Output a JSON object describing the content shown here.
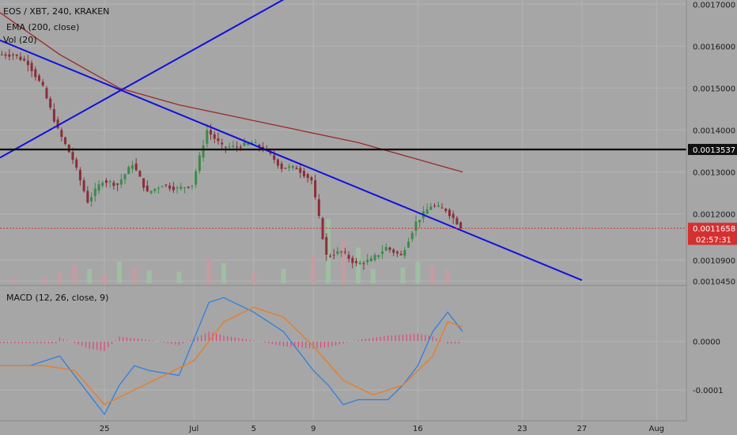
{
  "header": {
    "symbol": "EOS / XBT, 240, KRAKEN",
    "indicator_ema": "EMA (200, close)",
    "indicator_vol": "Vol (20)",
    "indicator_macd": "MACD (12, 26, close, 9)"
  },
  "colors": {
    "background": "#a6a6a6",
    "grid": "#b4b4b4",
    "up_candle": "#3c8a4a",
    "down_candle": "#8b2d3a",
    "ema": "#9a2a2a",
    "trendline": "#1010e0",
    "hline": "#000000",
    "price_line": "#d43030",
    "macd_line": "#2f7fe0",
    "signal_line": "#ee7a1e",
    "histogram": "#e0467a"
  },
  "chart_data": {
    "type": "candlestick",
    "title": "EOS / XBT, 240, KRAKEN",
    "price_axis": {
      "range": [
        0.001035,
        0.00171
      ],
      "ticks": [
        0.0017,
        0.0016,
        0.0015,
        0.0014,
        0.0013,
        0.0012,
        0.00109,
        0.00104
      ]
    },
    "price_tick_labels": [
      "0.0017000",
      "0.0016000",
      "0.0015000",
      "0.0014000",
      "0.0013000",
      "0.0012000",
      "0.0010900",
      "0.0010450"
    ],
    "x_axis": {
      "range": [
        -7,
        39
      ],
      "tick_labels": [
        {
          "x": 0,
          "label": "25"
        },
        {
          "x": 6,
          "label": "Jul"
        },
        {
          "x": 10,
          "label": "5"
        },
        {
          "x": 14,
          "label": "9"
        },
        {
          "x": 21,
          "label": "16"
        },
        {
          "x": 28,
          "label": "23"
        },
        {
          "x": 32,
          "label": "27"
        },
        {
          "x": 37,
          "label": "Aug"
        }
      ]
    },
    "price_path": [
      [
        -7,
        0.00158
      ],
      [
        -6,
        0.00158
      ],
      [
        -5,
        0.00156
      ],
      [
        -4,
        0.0015
      ],
      [
        -3,
        0.0014
      ],
      [
        -2,
        0.00133
      ],
      [
        -1,
        0.00123
      ],
      [
        0,
        0.00128
      ],
      [
        1,
        0.00127
      ],
      [
        2,
        0.00132
      ],
      [
        3,
        0.00125
      ],
      [
        4,
        0.00127
      ],
      [
        5,
        0.00126
      ],
      [
        6,
        0.00127
      ],
      [
        7,
        0.0014
      ],
      [
        8,
        0.00136
      ],
      [
        9,
        0.00136
      ],
      [
        10,
        0.00137
      ],
      [
        11,
        0.00135
      ],
      [
        12,
        0.00131
      ],
      [
        13,
        0.00131
      ],
      [
        14,
        0.00128
      ],
      [
        15,
        0.0011
      ],
      [
        16,
        0.00111
      ],
      [
        17,
        0.00108
      ],
      [
        18,
        0.00109
      ],
      [
        19,
        0.00112
      ],
      [
        20,
        0.0011
      ],
      [
        21,
        0.00118
      ],
      [
        22,
        0.00122
      ],
      [
        23,
        0.00121
      ],
      [
        24,
        0.00117
      ]
    ],
    "ema200": [
      [
        -7,
        0.00168
      ],
      [
        -3,
        0.00158
      ],
      [
        1,
        0.0015
      ],
      [
        5,
        0.00146
      ],
      [
        9,
        0.00143
      ],
      [
        13,
        0.0014
      ],
      [
        17,
        0.00137
      ],
      [
        21,
        0.00133
      ],
      [
        24,
        0.0013
      ]
    ],
    "trendlines": [
      {
        "from": [
          -7,
          0.001334
        ],
        "to": [
          13,
          0.001731
        ]
      },
      {
        "from": [
          -7,
          0.001614
        ],
        "to": [
          32,
          0.001042
        ]
      }
    ],
    "horizontal_line": {
      "value": 0.0013537,
      "label": "0.0013537"
    },
    "last_price": {
      "value": 0.0011658,
      "label": "0.0011658",
      "countdown": "02:57:31"
    },
    "volume": [
      [
        -6,
        0.05
      ],
      [
        -4,
        0.08
      ],
      [
        -3,
        0.15
      ],
      [
        -2,
        0.25
      ],
      [
        -1,
        0.2
      ],
      [
        0,
        0.12
      ],
      [
        1,
        0.3
      ],
      [
        2,
        0.22
      ],
      [
        3,
        0.18
      ],
      [
        5,
        0.16
      ],
      [
        7,
        0.35
      ],
      [
        8,
        0.28
      ],
      [
        10,
        0.15
      ],
      [
        12,
        0.2
      ],
      [
        14,
        0.4
      ],
      [
        15,
        0.9
      ],
      [
        16,
        0.6
      ],
      [
        17,
        0.5
      ],
      [
        18,
        0.2
      ],
      [
        20,
        0.22
      ],
      [
        21,
        0.3
      ],
      [
        22,
        0.25
      ],
      [
        23,
        0.2
      ]
    ],
    "macd": {
      "axis": {
        "range": [
          -0.00016,
          0.00011
        ],
        "tick_labels": [
          {
            "value": 0,
            "label": "0.0000"
          },
          {
            "value": -0.0001,
            "label": "-0.0001"
          }
        ]
      },
      "macd_line": [
        [
          -7,
          -5e-05
        ],
        [
          -5,
          -5e-05
        ],
        [
          -3,
          -3e-05
        ],
        [
          -1,
          -0.00011
        ],
        [
          0,
          -0.00015
        ],
        [
          1,
          -9e-05
        ],
        [
          2,
          -5e-05
        ],
        [
          3,
          -6e-05
        ],
        [
          5,
          -7e-05
        ],
        [
          7,
          8e-05
        ],
        [
          8,
          9e-05
        ],
        [
          10,
          6e-05
        ],
        [
          12,
          2e-05
        ],
        [
          14,
          -6e-05
        ],
        [
          15,
          -9e-05
        ],
        [
          16,
          -0.00013
        ],
        [
          17,
          -0.00012
        ],
        [
          19,
          -0.00012
        ],
        [
          20,
          -9e-05
        ],
        [
          21,
          -5e-05
        ],
        [
          22,
          2e-05
        ],
        [
          23,
          6e-05
        ],
        [
          24,
          2e-05
        ]
      ],
      "signal_line": [
        [
          -7,
          -5e-05
        ],
        [
          -4,
          -5e-05
        ],
        [
          -2,
          -6e-05
        ],
        [
          0,
          -0.00013
        ],
        [
          2,
          -0.0001
        ],
        [
          4,
          -7e-05
        ],
        [
          6,
          -4e-05
        ],
        [
          8,
          4e-05
        ],
        [
          10,
          7e-05
        ],
        [
          12,
          5e-05
        ],
        [
          14,
          -1e-05
        ],
        [
          16,
          -8e-05
        ],
        [
          18,
          -0.00011
        ],
        [
          20,
          -9e-05
        ],
        [
          22,
          -3e-05
        ],
        [
          23,
          4e-05
        ],
        [
          24,
          3e-05
        ]
      ],
      "histogram": [
        [
          -3,
          8e-06
        ],
        [
          -1,
          -1.5e-05
        ],
        [
          0,
          -2e-05
        ],
        [
          1,
          1e-05
        ],
        [
          3,
          3e-06
        ],
        [
          5,
          -8e-06
        ],
        [
          7,
          2e-05
        ],
        [
          8,
          1.2e-05
        ],
        [
          10,
          2e-06
        ],
        [
          12,
          -1e-05
        ],
        [
          14,
          -1.5e-05
        ],
        [
          15,
          -1.2e-05
        ],
        [
          17,
          3e-06
        ],
        [
          19,
          1.2e-05
        ],
        [
          21,
          1.6e-05
        ],
        [
          22,
          1e-05
        ],
        [
          23,
          -5e-06
        ],
        [
          24,
          -4e-06
        ]
      ]
    }
  }
}
